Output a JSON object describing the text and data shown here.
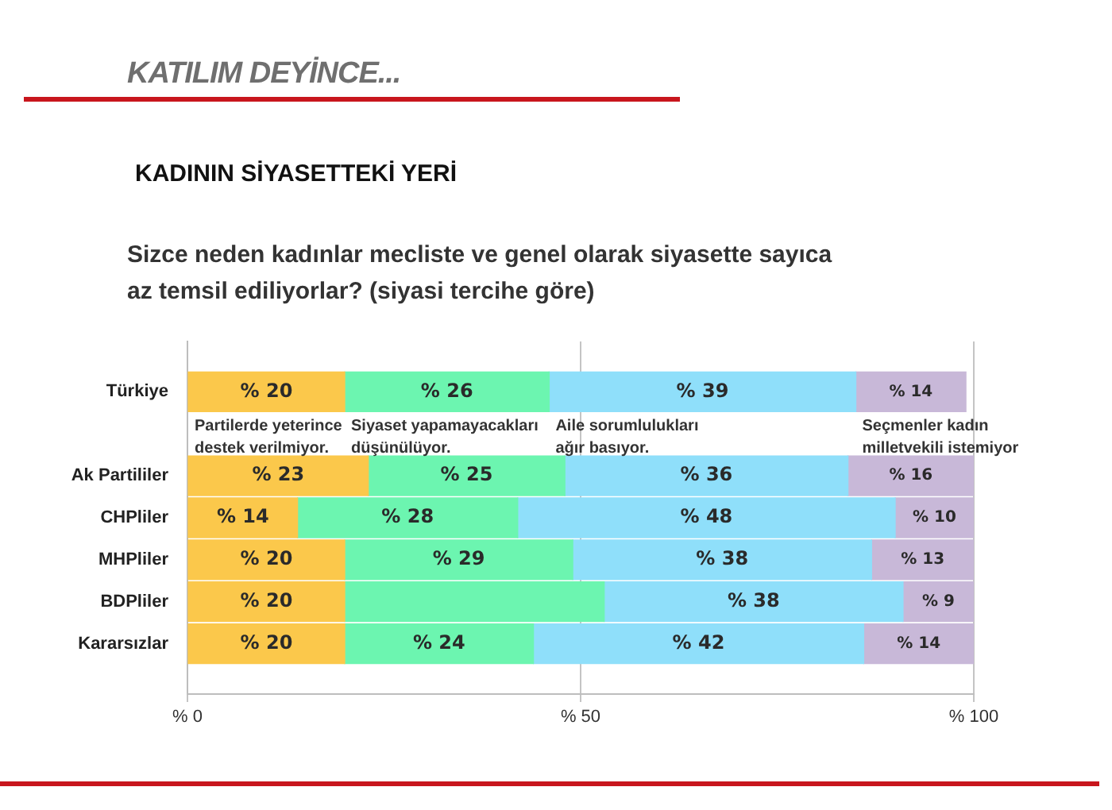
{
  "chart_data": {
    "type": "bar",
    "orientation": "horizontal",
    "stacked": true,
    "title": "KADININ SİYASETTEKİ YERİ",
    "subtitle": "Sizce neden kadınlar mecliste ve genel olarak siyasette sayıca az temsil ediliyorlar? (siyasi tercihe göre)",
    "annotations": [
      "KATILIM DEYİNCE..."
    ],
    "categories": [
      "Türkiye",
      "Ak Partililer",
      "CHPliler",
      "MHPliler",
      "BDPliler",
      "Kararsızlar"
    ],
    "series": [
      {
        "name": "Partilerde yeterince destek verilmiyor.",
        "color": "#fbc84b",
        "values": [
          20,
          23,
          14,
          20,
          20,
          20
        ],
        "value_labels": [
          "% 20",
          "% 23",
          "% 14",
          "% 20",
          "% 20",
          "% 20"
        ]
      },
      {
        "name": "Siyaset yapamayacakları düşünülüyor.",
        "color": "#6cf5b0",
        "values": [
          26,
          25,
          28,
          29,
          33,
          24
        ],
        "value_labels": [
          "% 26",
          "% 25",
          "% 28",
          "% 29",
          null,
          "% 24"
        ]
      },
      {
        "name": "Aile sorumlulukları ağır basıyor.",
        "color": "#8fdffa",
        "values": [
          39,
          36,
          48,
          38,
          38,
          42
        ],
        "value_labels": [
          "% 39",
          "% 36",
          "% 48",
          "% 38",
          "% 38",
          "% 42"
        ]
      },
      {
        "name": "Seçmenler kadın milletvekili istemiyor",
        "color": "#c8b8d8",
        "values": [
          14,
          16,
          10,
          13,
          9,
          14
        ],
        "value_labels": [
          "% 14",
          "% 16",
          "% 10",
          "% 13",
          "% 9",
          "% 14"
        ]
      }
    ],
    "xlim": [
      0,
      100
    ],
    "xticks": [
      {
        "value": 0,
        "label": "% 0"
      },
      {
        "value": 50,
        "label": "% 50"
      },
      {
        "value": 100,
        "label": "% 100"
      }
    ],
    "grid": "x",
    "legend": false
  }
}
